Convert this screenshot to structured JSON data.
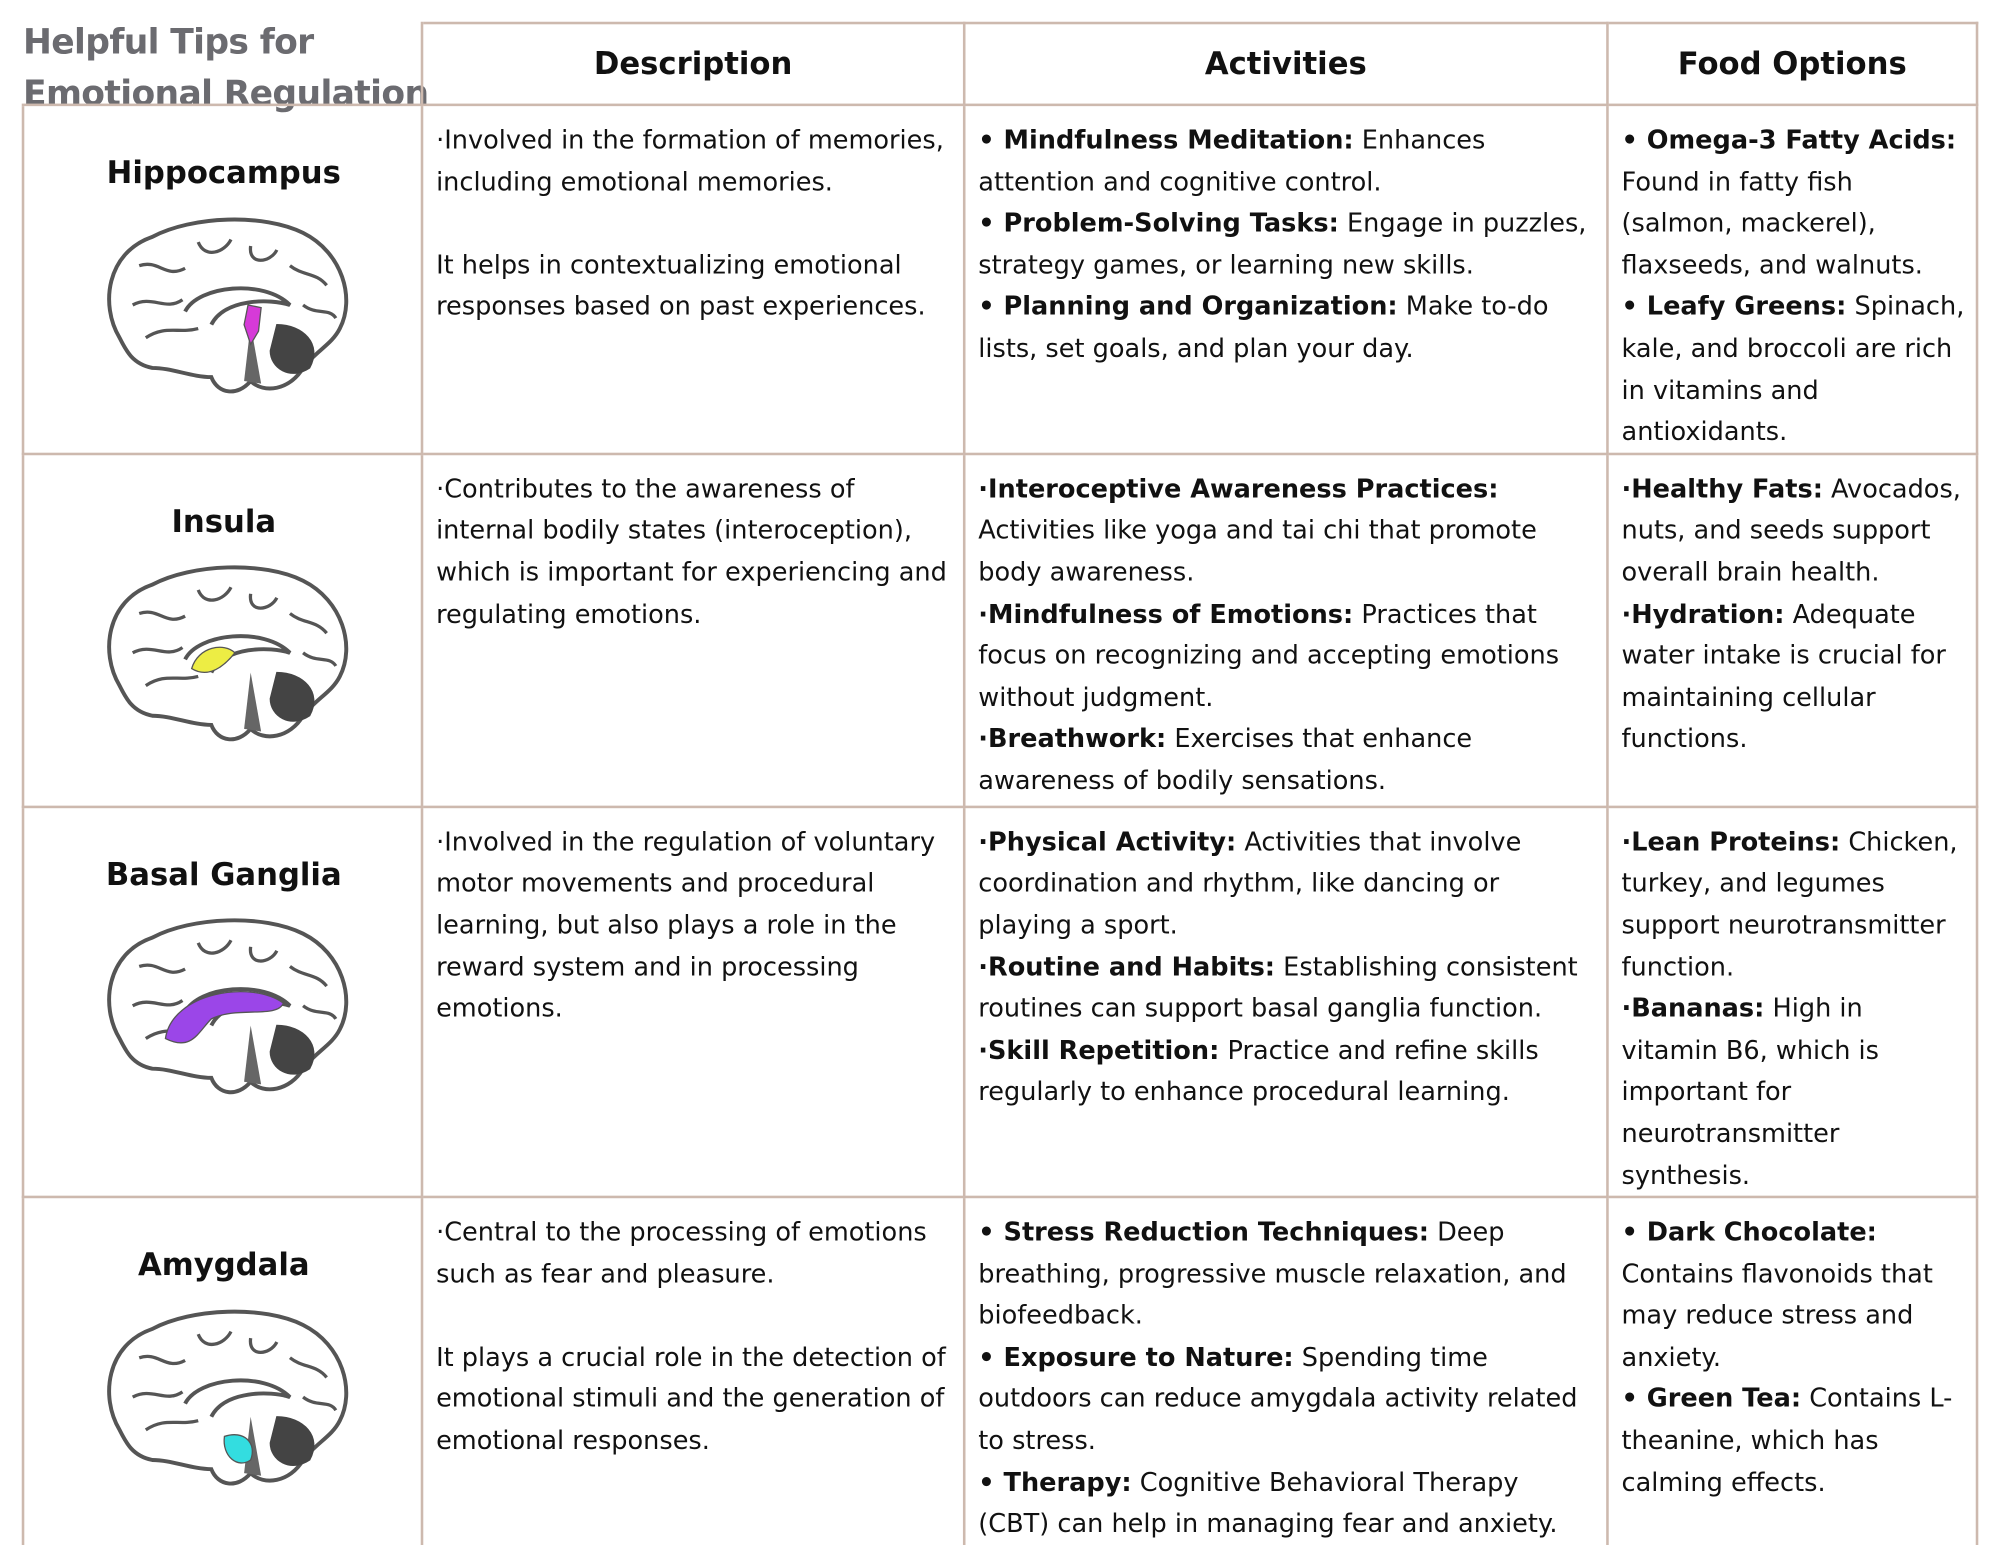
{
  "header": {
    "title_lines": [
      "Helpful Tips for",
      "Emotional Regulation"
    ],
    "columns": [
      "Description",
      "Activities",
      "Food Options"
    ]
  },
  "table": {
    "rows": [
      {
        "region": "Hippocampus",
        "description": [
          "·Involved in the formation of memories, including emotional memories.",
          "It helps in contextualizing emotional responses based on past experiences."
        ],
        "activities": [
          {
            "label": "• Mindfulness Meditation:",
            "text": " Enhances attention and cognitive control."
          },
          {
            "label": "• Problem-Solving Tasks:",
            "text": " Engage in puzzles, strategy games, or learning new skills."
          },
          {
            "label": "• Planning and Organization:",
            "text": " Make to-do lists, set goals, and plan your day."
          }
        ],
        "foods": [
          {
            "label": "• Omega-3 Fatty Acids:",
            "text": " Found in fatty fish (salmon, mackerel), flaxseeds, and walnuts."
          },
          {
            "label": "• Leafy Greens:",
            "text": " Spinach, kale, and broccoli are rich in vitamins and antioxidants."
          }
        ]
      },
      {
        "region": "Insula",
        "description": [
          "·Contributes to the awareness of internal bodily states (interoception), which is important for experiencing and regulating emotions."
        ],
        "activities": [
          {
            "label": "·Interoceptive Awareness Practices:",
            "text": " Activities like yoga and tai chi that promote body awareness."
          },
          {
            "label": "·Mindfulness of Emotions:",
            "text": " Practices that focus on recognizing and accepting emotions without judgment."
          },
          {
            "label": "·Breathwork:",
            "text": " Exercises that enhance awareness of bodily sensations."
          }
        ],
        "foods": [
          {
            "label": "·Healthy Fats:",
            "text": " Avocados, nuts, and seeds support overall brain health."
          },
          {
            "label": "·Hydration:",
            "text": " Adequate water intake is crucial for maintaining cellular functions."
          }
        ]
      },
      {
        "region": "Basal Ganglia",
        "description": [
          "·Involved in the regulation of voluntary motor movements and procedural learning, but also plays a role in the reward system and in processing emotions."
        ],
        "activities": [
          {
            "label": "·Physical Activity:",
            "text": " Activities that involve coordination and rhythm, like dancing or playing a sport."
          },
          {
            "label": "·Routine and Habits:",
            "text": " Establishing consistent routines can support basal ganglia function."
          },
          {
            "label": "·Skill Repetition:",
            "text": " Practice and refine skills regularly to enhance procedural learning."
          }
        ],
        "foods": [
          {
            "label": "·Lean Proteins:",
            "text": " Chicken, turkey, and legumes support neurotransmitter function."
          },
          {
            "label": "·Bananas:",
            "text": " High in vitamin B6, which is important for neurotransmitter synthesis."
          }
        ]
      },
      {
        "region": "Amygdala",
        "description": [
          "·Central to the processing of emotions such as fear and pleasure.",
          "It plays a crucial role in the detection of emotional stimuli and the generation of emotional responses."
        ],
        "activities": [
          {
            "label": "• Stress Reduction Techniques:",
            "text": " Deep breathing, progressive muscle relaxation, and biofeedback."
          },
          {
            "label": "• Exposure to Nature:",
            "text": " Spending time outdoors can reduce amygdala activity related to stress."
          },
          {
            "label": "• Therapy:",
            "text": " Cognitive Behavioral Therapy (CBT) can help in managing fear and anxiety."
          }
        ],
        "foods": [
          {
            "label": "• Dark Chocolate:",
            "text": " Contains flavonoids that may reduce stress and anxiety."
          },
          {
            "label": "• Green Tea:",
            "text": " Contains L-theanine, which has calming effects."
          }
        ]
      }
    ]
  }
}
